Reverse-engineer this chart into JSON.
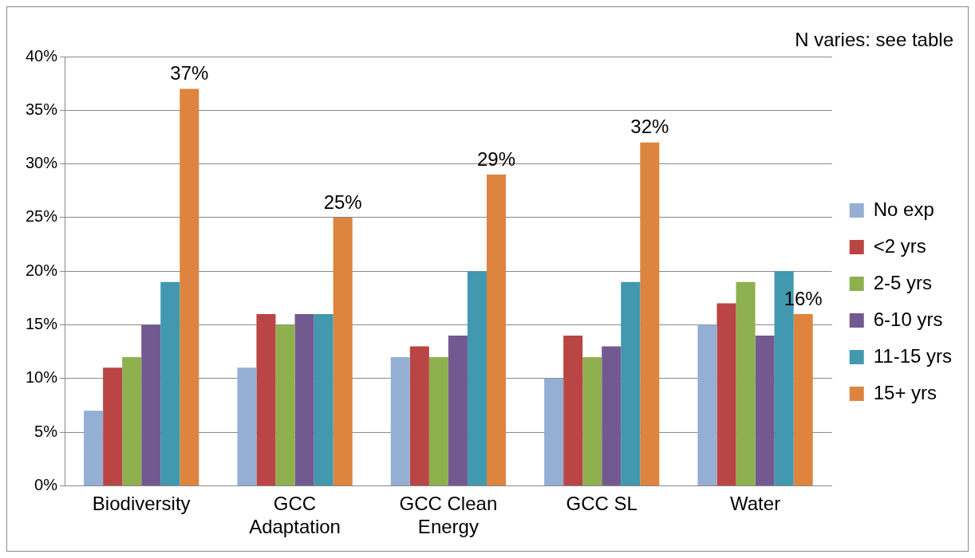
{
  "chart_data": {
    "type": "bar",
    "categories": [
      "Biodiversity",
      "GCC Adaptation",
      "GCC Clean Energy",
      "GCC SL",
      "Water"
    ],
    "series": [
      {
        "name": "No exp",
        "color": "#95aed4",
        "values": [
          7,
          11,
          12,
          10,
          15
        ]
      },
      {
        "name": "<2 yrs",
        "color": "#b94545",
        "values": [
          11,
          16,
          13,
          14,
          17
        ]
      },
      {
        "name": "2-5 yrs",
        "color": "#8fb04e",
        "values": [
          12,
          15,
          12,
          12,
          19
        ]
      },
      {
        "name": "6-10 yrs",
        "color": "#725a91",
        "values": [
          15,
          16,
          14,
          13,
          14
        ]
      },
      {
        "name": "11-15 yrs",
        "color": "#4198af",
        "values": [
          19,
          16,
          20,
          19,
          20
        ]
      },
      {
        "name": "15+ yrs",
        "color": "#dd843e",
        "values": [
          37,
          25,
          29,
          32,
          16
        ],
        "value_labels": [
          "37%",
          "25%",
          "29%",
          "32%",
          "16%"
        ]
      }
    ],
    "ylim": [
      0,
      40
    ],
    "yticks": [
      {
        "value": 0,
        "label": "0%"
      },
      {
        "value": 5,
        "label": "5%"
      },
      {
        "value": 10,
        "label": "10%"
      },
      {
        "value": 15,
        "label": "15%"
      },
      {
        "value": 20,
        "label": "20%"
      },
      {
        "value": 25,
        "label": "25%"
      },
      {
        "value": 30,
        "label": "30%"
      },
      {
        "value": 35,
        "label": "35%"
      },
      {
        "value": 40,
        "label": "40%"
      }
    ],
    "grid": "y",
    "legend": "right",
    "annotations": [
      "N varies: see table"
    ]
  }
}
